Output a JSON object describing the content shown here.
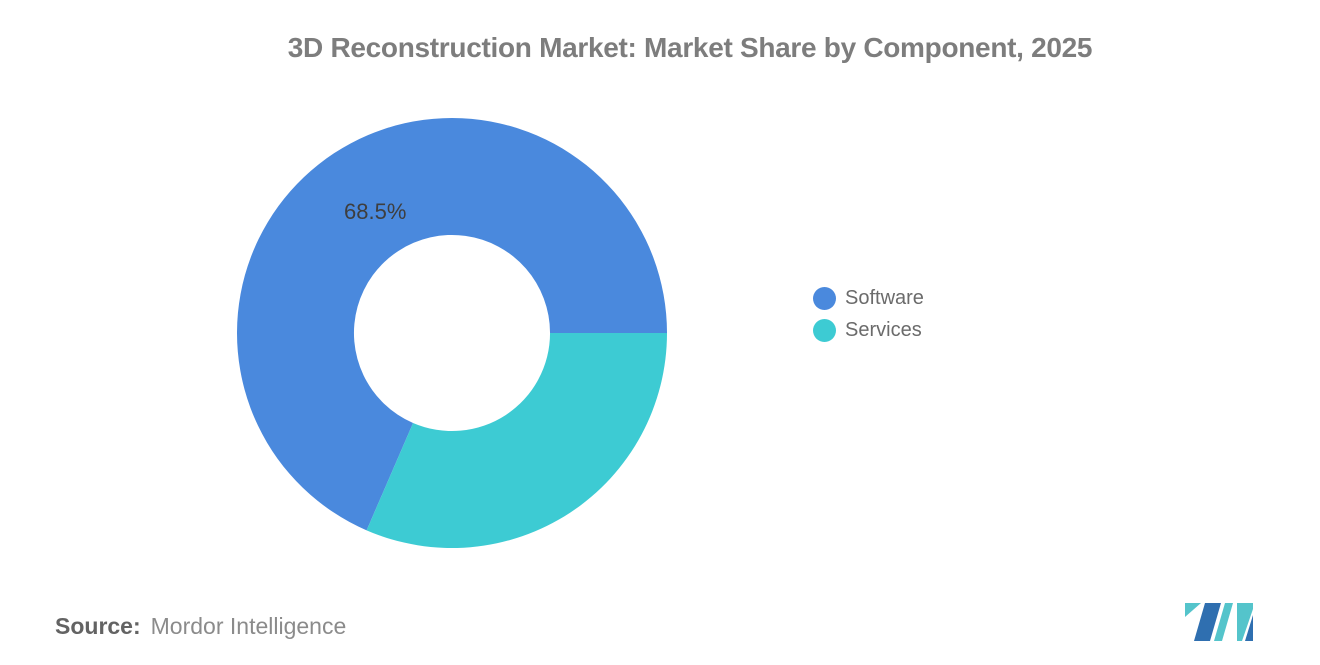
{
  "title": "3D Reconstruction Market: Market Share by Component, 2025",
  "chart_data": {
    "type": "pie",
    "subtype": "donut",
    "title": "3D Reconstruction Market: Market Share by Component, 2025",
    "categories": [
      "Software",
      "Services"
    ],
    "values": [
      68.5,
      31.5
    ],
    "unit": "%",
    "colors": [
      "#4A89DD",
      "#3DCBD3"
    ],
    "visible_data_labels": [
      "68.5%"
    ],
    "legend_position": "right",
    "donut_hole_ratio": 0.456,
    "services_start_angle_clockwise_from_top_deg": 90,
    "grid": false
  },
  "data_labels": {
    "software": "68.5%"
  },
  "legend": {
    "items": [
      {
        "label": "Software",
        "color": "#4A89DD"
      },
      {
        "label": "Services",
        "color": "#3DCBD3"
      }
    ]
  },
  "source": {
    "prefix": "Source:",
    "name": "Mordor Intelligence"
  },
  "branding": {
    "logo": "mordor-intelligence-m-logo",
    "logo_teal": "#54C4CB",
    "logo_blue": "#2F6FB0"
  }
}
